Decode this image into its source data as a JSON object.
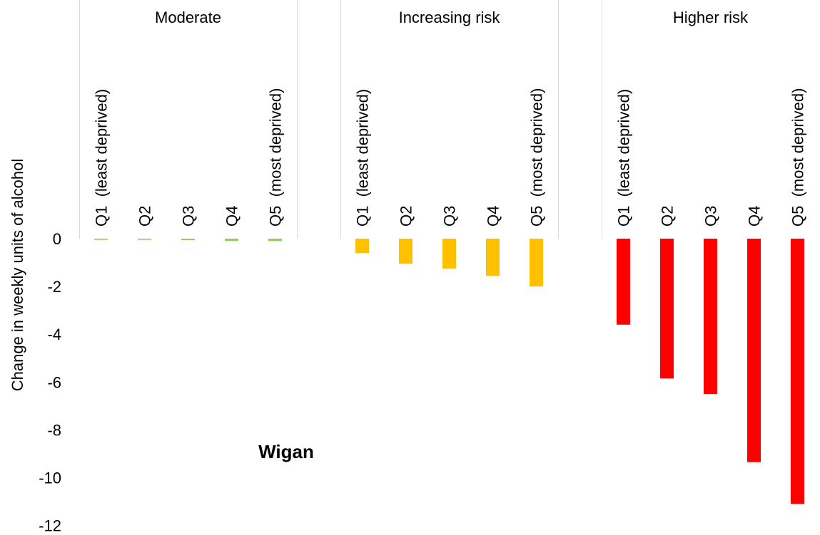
{
  "chart_data": {
    "type": "bar",
    "ylabel": "Change in weekly units of alcohol",
    "ylim": [
      -12,
      0
    ],
    "yticks": [
      0,
      -2,
      -4,
      -6,
      -8,
      -10,
      -12
    ],
    "annotation": "Wigan",
    "grid": false,
    "groups": [
      {
        "name": "Moderate",
        "color": "#92D050",
        "categories": [
          "Q1  (least deprived)",
          "Q2",
          "Q3",
          "Q4",
          "Q5  (most deprived)"
        ],
        "values": [
          -0.05,
          -0.05,
          -0.06,
          -0.1,
          -0.1
        ]
      },
      {
        "name": "Increasing risk",
        "color": "#FFC000",
        "categories": [
          "Q1  (least deprived)",
          "Q2",
          "Q3",
          "Q4",
          "Q5  (most deprived)"
        ],
        "values": [
          -0.6,
          -1.05,
          -1.25,
          -1.55,
          -2.0
        ]
      },
      {
        "name": "Higher risk",
        "color": "#FF0000",
        "categories": [
          "Q1  (least deprived)",
          "Q2",
          "Q3",
          "Q4",
          "Q5  (most deprived)"
        ],
        "values": [
          -3.6,
          -5.85,
          -6.5,
          -9.35,
          -11.1
        ]
      }
    ]
  }
}
